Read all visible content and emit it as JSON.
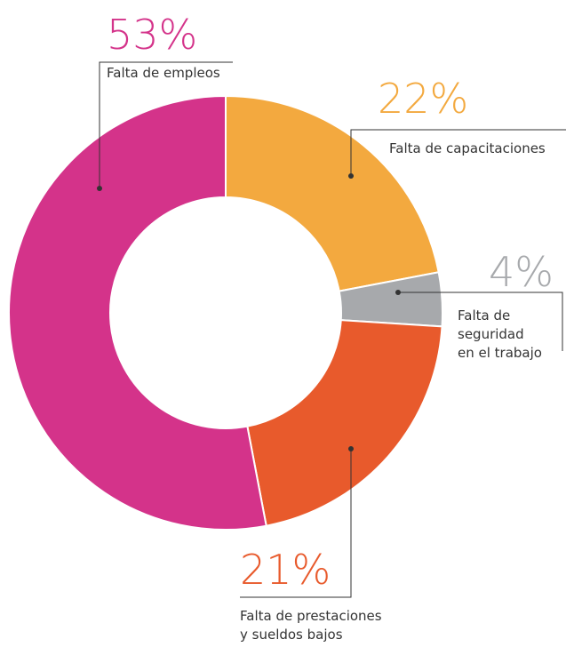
{
  "chart_data": {
    "type": "donut",
    "categories": [
      "Falta de capacitaciones",
      "Falta de\nseguridad\nen el trabajo",
      "Falta de prestaciones\ny sueldos bajos",
      "Falta de empleos"
    ],
    "values": [
      22,
      4,
      21,
      53
    ],
    "value_labels": [
      "22%",
      "4%",
      "21%",
      "53%"
    ],
    "colors": [
      "#f3a93f",
      "#a7a9ac",
      "#e85a2c",
      "#d4338a"
    ]
  }
}
